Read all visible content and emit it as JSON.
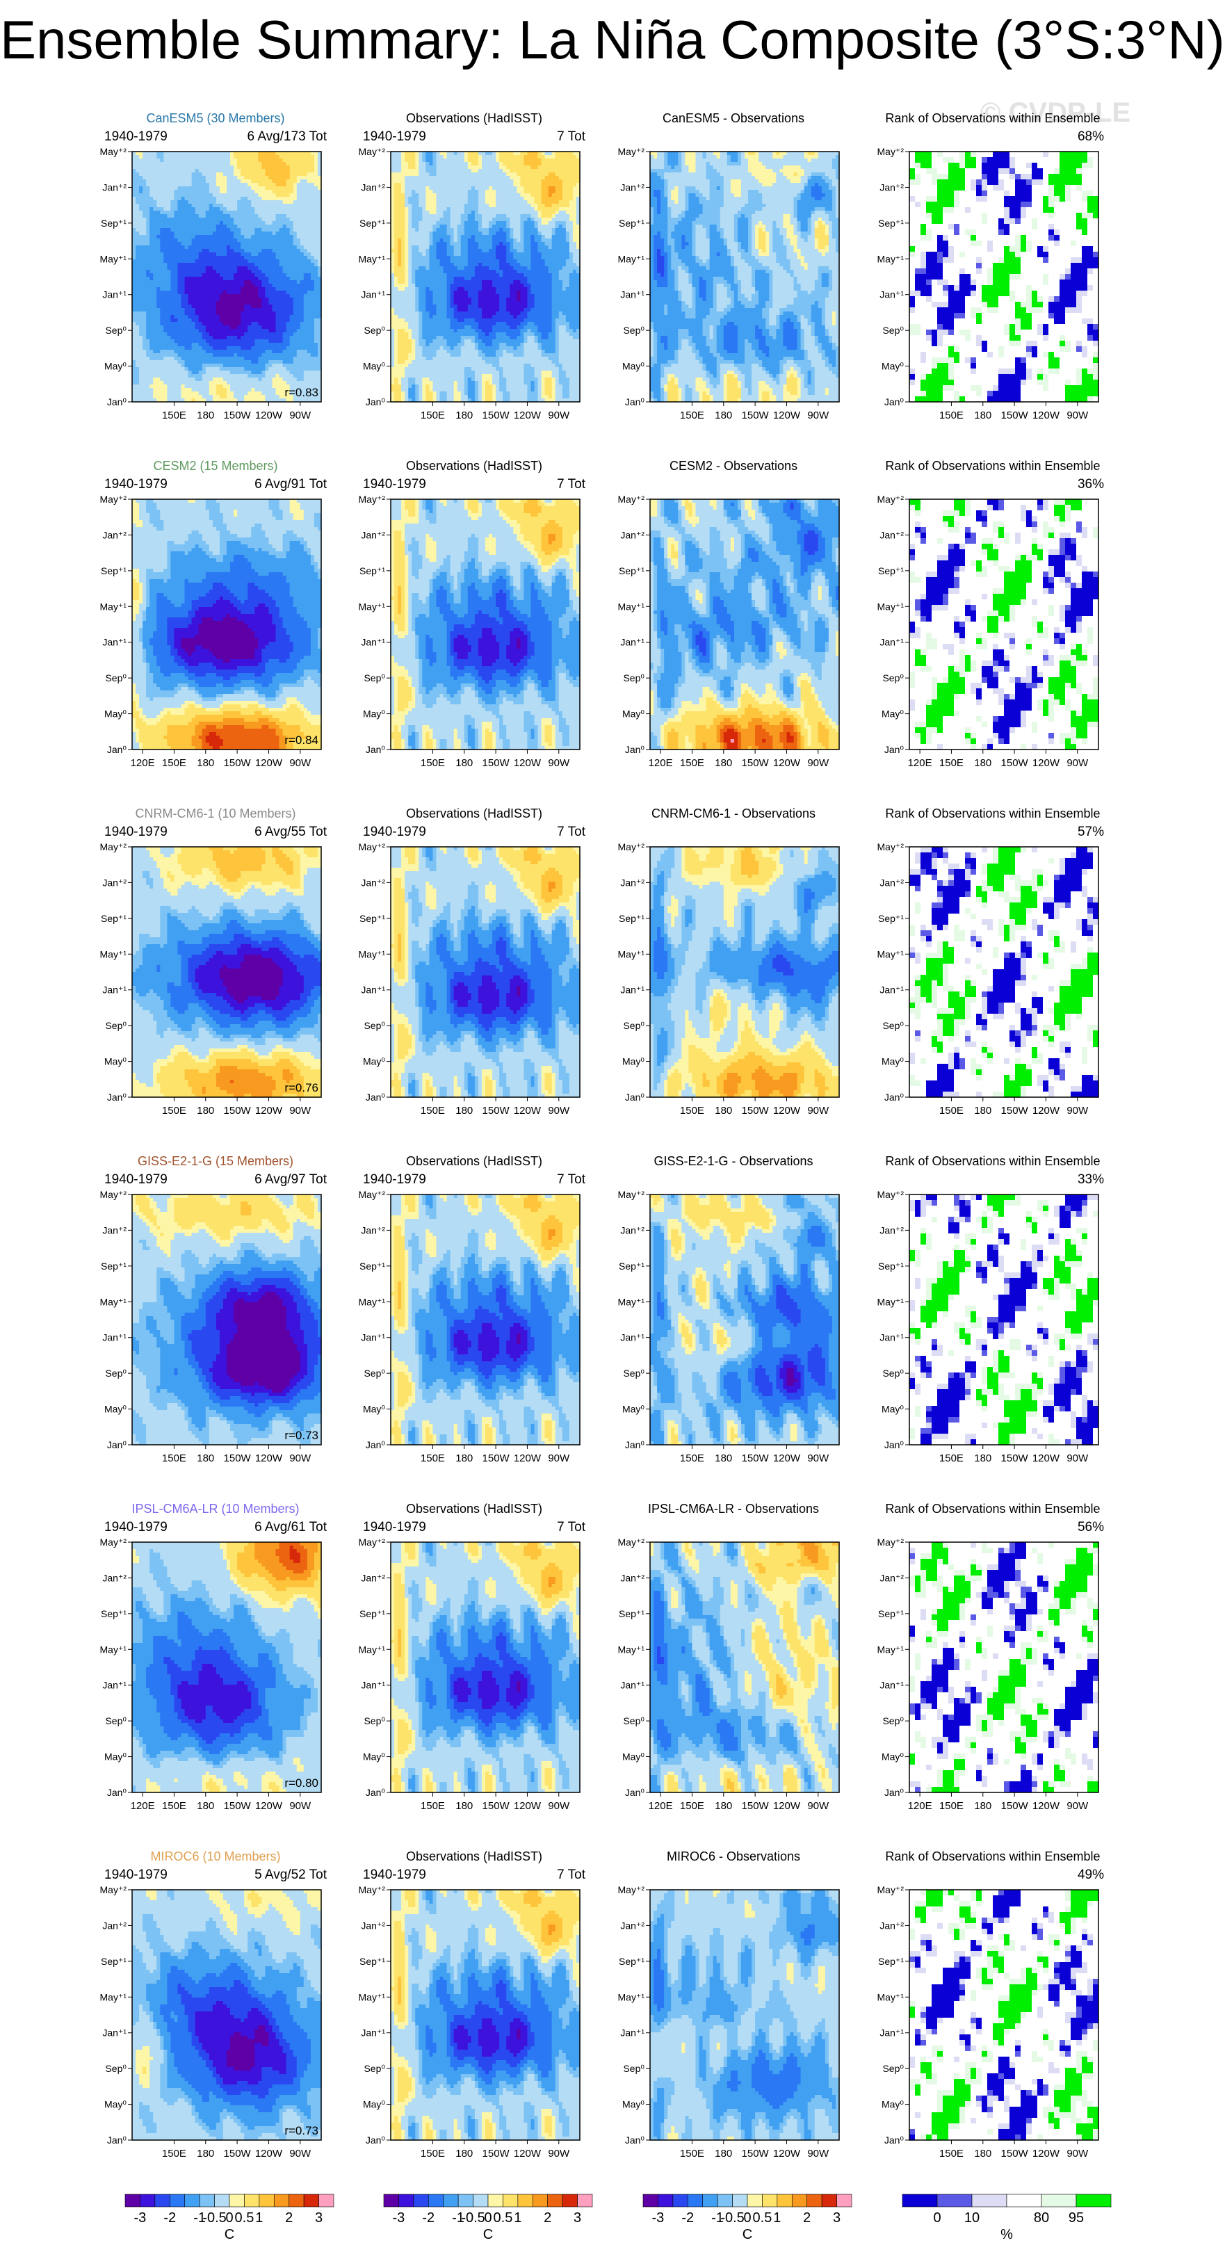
{
  "title": "Ensemble Summary: La Niña Composite (3°S:3°N)",
  "watermark": "© CVDP-LE",
  "colors": {
    "diff_levels": [
      "#5e00a6",
      "#3d12dc",
      "#2a48f0",
      "#2a78f4",
      "#41a0f2",
      "#7cc2f4",
      "#b4dcf4",
      "#fdf6a6",
      "#fde36a",
      "#fdc43c",
      "#f99a20",
      "#ed6410",
      "#d8280a",
      "#ff9fbf"
    ],
    "rank_levels": [
      "#0a00d6",
      "#5a5ae6",
      "#dcdcf4",
      "#ffffff",
      "#e4fae4",
      "#00ee00"
    ]
  },
  "chart_data": [
    {
      "type": "heatmap",
      "title": "CanESM5 (30 Members)",
      "title_color": "#2877a8",
      "subtitle_left": "1940-1979",
      "subtitle_right": "6 Avg/173 Tot",
      "correlation": "r=0.83",
      "xticks": [
        "150E",
        "180",
        "150W",
        "120W",
        "90W"
      ],
      "yticks": [
        "Jan⁰",
        "May⁰",
        "Sep⁰",
        "Jan⁺¹",
        "May⁺¹",
        "Sep⁺¹",
        "Jan⁺²",
        "May⁺²"
      ],
      "units": "C"
    },
    {
      "type": "heatmap",
      "title": "Observations (HadISST)",
      "subtitle_left": "1940-1979",
      "subtitle_right": "7 Tot",
      "xticks": [
        "150E",
        "180",
        "150W",
        "120W",
        "90W"
      ],
      "yticks": [
        "Jan⁰",
        "May⁰",
        "Sep⁰",
        "Jan⁺¹",
        "May⁺¹",
        "Sep⁺¹",
        "Jan⁺²",
        "May⁺²"
      ],
      "units": "C"
    },
    {
      "type": "heatmap",
      "title": "CanESM5 - Observations",
      "xticks": [
        "150E",
        "180",
        "150W",
        "120W",
        "90W"
      ],
      "yticks": [
        "Jan⁰",
        "May⁰",
        "Sep⁰",
        "Jan⁺¹",
        "May⁺¹",
        "Sep⁺¹",
        "Jan⁺²",
        "May⁺²"
      ],
      "units": "C"
    },
    {
      "type": "heatmap",
      "title": "Rank of Observations within Ensemble",
      "subtitle_right": "68%",
      "xticks": [
        "150E",
        "180",
        "150W",
        "120W",
        "90W"
      ],
      "yticks": [
        "Jan⁰",
        "May⁰",
        "Sep⁰",
        "Jan⁺¹",
        "May⁺¹",
        "Sep⁺¹",
        "Jan⁺²",
        "May⁺²"
      ],
      "units": "%"
    },
    {
      "type": "heatmap",
      "title": "CESM2 (15 Members)",
      "title_color": "#5f9a5f",
      "subtitle_left": "1940-1979",
      "subtitle_right": "6 Avg/91 Tot",
      "correlation": "r=0.84",
      "xticks": [
        "120E",
        "150E",
        "180",
        "150W",
        "120W",
        "90W"
      ],
      "yticks": [
        "Jan⁰",
        "May⁰",
        "Sep⁰",
        "Jan⁺¹",
        "May⁺¹",
        "Sep⁺¹",
        "Jan⁺²",
        "May⁺²"
      ],
      "units": "C"
    },
    {
      "type": "heatmap",
      "title": "Observations (HadISST)",
      "subtitle_left": "1940-1979",
      "subtitle_right": "7 Tot",
      "xticks": [
        "150E",
        "180",
        "150W",
        "120W",
        "90W"
      ],
      "yticks": [
        "Jan⁰",
        "May⁰",
        "Sep⁰",
        "Jan⁺¹",
        "May⁺¹",
        "Sep⁺¹",
        "Jan⁺²",
        "May⁺²"
      ],
      "units": "C"
    },
    {
      "type": "heatmap",
      "title": "CESM2 - Observations",
      "xticks": [
        "120E",
        "150E",
        "180",
        "150W",
        "120W",
        "90W"
      ],
      "yticks": [
        "Jan⁰",
        "May⁰",
        "Sep⁰",
        "Jan⁺¹",
        "May⁺¹",
        "Sep⁺¹",
        "Jan⁺²",
        "May⁺²"
      ],
      "units": "C"
    },
    {
      "type": "heatmap",
      "title": "Rank of Observations within Ensemble",
      "subtitle_right": "36%",
      "xticks": [
        "120E",
        "150E",
        "180",
        "150W",
        "120W",
        "90W"
      ],
      "yticks": [
        "Jan⁰",
        "May⁰",
        "Sep⁰",
        "Jan⁺¹",
        "May⁺¹",
        "Sep⁺¹",
        "Jan⁺²",
        "May⁺²"
      ],
      "units": "%"
    },
    {
      "type": "heatmap",
      "title": "CNRM-CM6-1 (10 Members)",
      "title_color": "#8a8a8a",
      "subtitle_left": "1940-1979",
      "subtitle_right": "6 Avg/55 Tot",
      "correlation": "r=0.76",
      "xticks": [
        "150E",
        "180",
        "150W",
        "120W",
        "90W"
      ],
      "yticks": [
        "Jan⁰",
        "May⁰",
        "Sep⁰",
        "Jan⁺¹",
        "May⁺¹",
        "Sep⁺¹",
        "Jan⁺²",
        "May⁺²"
      ],
      "units": "C"
    },
    {
      "type": "heatmap",
      "title": "Observations (HadISST)",
      "subtitle_left": "1940-1979",
      "subtitle_right": "7 Tot",
      "xticks": [
        "150E",
        "180",
        "150W",
        "120W",
        "90W"
      ],
      "yticks": [
        "Jan⁰",
        "May⁰",
        "Sep⁰",
        "Jan⁺¹",
        "May⁺¹",
        "Sep⁺¹",
        "Jan⁺²",
        "May⁺²"
      ],
      "units": "C"
    },
    {
      "type": "heatmap",
      "title": "CNRM-CM6-1 - Observations",
      "xticks": [
        "150E",
        "180",
        "150W",
        "120W",
        "90W"
      ],
      "yticks": [
        "Jan⁰",
        "May⁰",
        "Sep⁰",
        "Jan⁺¹",
        "May⁺¹",
        "Sep⁺¹",
        "Jan⁺²",
        "May⁺²"
      ],
      "units": "C"
    },
    {
      "type": "heatmap",
      "title": "Rank of Observations within Ensemble",
      "subtitle_right": "57%",
      "xticks": [
        "150E",
        "180",
        "150W",
        "120W",
        "90W"
      ],
      "yticks": [
        "Jan⁰",
        "May⁰",
        "Sep⁰",
        "Jan⁺¹",
        "May⁺¹",
        "Sep⁺¹",
        "Jan⁺²",
        "May⁺²"
      ],
      "units": "%"
    },
    {
      "type": "heatmap",
      "title": "GISS-E2-1-G (15 Members)",
      "title_color": "#a0522d",
      "subtitle_left": "1940-1979",
      "subtitle_right": "6 Avg/97 Tot",
      "correlation": "r=0.73",
      "xticks": [
        "150E",
        "180",
        "150W",
        "120W",
        "90W"
      ],
      "yticks": [
        "Jan⁰",
        "May⁰",
        "Sep⁰",
        "Jan⁺¹",
        "May⁺¹",
        "Sep⁺¹",
        "Jan⁺²",
        "May⁺²"
      ],
      "units": "C"
    },
    {
      "type": "heatmap",
      "title": "Observations (HadISST)",
      "subtitle_left": "1940-1979",
      "subtitle_right": "7 Tot",
      "xticks": [
        "150E",
        "180",
        "150W",
        "120W",
        "90W"
      ],
      "yticks": [
        "Jan⁰",
        "May⁰",
        "Sep⁰",
        "Jan⁺¹",
        "May⁺¹",
        "Sep⁺¹",
        "Jan⁺²",
        "May⁺²"
      ],
      "units": "C"
    },
    {
      "type": "heatmap",
      "title": "GISS-E2-1-G - Observations",
      "xticks": [
        "150E",
        "180",
        "150W",
        "120W",
        "90W"
      ],
      "yticks": [
        "Jan⁰",
        "May⁰",
        "Sep⁰",
        "Jan⁺¹",
        "May⁺¹",
        "Sep⁺¹",
        "Jan⁺²",
        "May⁺²"
      ],
      "units": "C"
    },
    {
      "type": "heatmap",
      "title": "Rank of Observations within Ensemble",
      "subtitle_right": "33%",
      "xticks": [
        "150E",
        "180",
        "150W",
        "120W",
        "90W"
      ],
      "yticks": [
        "Jan⁰",
        "May⁰",
        "Sep⁰",
        "Jan⁺¹",
        "May⁺¹",
        "Sep⁺¹",
        "Jan⁺²",
        "May⁺²"
      ],
      "units": "%"
    },
    {
      "type": "heatmap",
      "title": "IPSL-CM6A-LR (10 Members)",
      "title_color": "#7b68ee",
      "subtitle_left": "1940-1979",
      "subtitle_right": "6 Avg/61 Tot",
      "correlation": "r=0.80",
      "xticks": [
        "120E",
        "150E",
        "180",
        "150W",
        "120W",
        "90W"
      ],
      "yticks": [
        "Jan⁰",
        "May⁰",
        "Sep⁰",
        "Jan⁺¹",
        "May⁺¹",
        "Sep⁺¹",
        "Jan⁺²",
        "May⁺²"
      ],
      "units": "C"
    },
    {
      "type": "heatmap",
      "title": "Observations (HadISST)",
      "subtitle_left": "1940-1979",
      "subtitle_right": "7 Tot",
      "xticks": [
        "150E",
        "180",
        "150W",
        "120W",
        "90W"
      ],
      "yticks": [
        "Jan⁰",
        "May⁰",
        "Sep⁰",
        "Jan⁺¹",
        "May⁺¹",
        "Sep⁺¹",
        "Jan⁺²",
        "May⁺²"
      ],
      "units": "C"
    },
    {
      "type": "heatmap",
      "title": "IPSL-CM6A-LR - Observations",
      "xticks": [
        "120E",
        "150E",
        "180",
        "150W",
        "120W",
        "90W"
      ],
      "yticks": [
        "Jan⁰",
        "May⁰",
        "Sep⁰",
        "Jan⁺¹",
        "May⁺¹",
        "Sep⁺¹",
        "Jan⁺²",
        "May⁺²"
      ],
      "units": "C"
    },
    {
      "type": "heatmap",
      "title": "Rank of Observations within Ensemble",
      "subtitle_right": "56%",
      "xticks": [
        "120E",
        "150E",
        "180",
        "150W",
        "120W",
        "90W"
      ],
      "yticks": [
        "Jan⁰",
        "May⁰",
        "Sep⁰",
        "Jan⁺¹",
        "May⁺¹",
        "Sep⁺¹",
        "Jan⁺²",
        "May⁺²"
      ],
      "units": "%"
    },
    {
      "type": "heatmap",
      "title": "MIROC6 (10 Members)",
      "title_color": "#e0a050",
      "subtitle_left": "1940-1979",
      "subtitle_right": "5 Avg/52 Tot",
      "correlation": "r=0.73",
      "xticks": [
        "150E",
        "180",
        "150W",
        "120W",
        "90W"
      ],
      "yticks": [
        "Jan⁰",
        "May⁰",
        "Sep⁰",
        "Jan⁺¹",
        "May⁺¹",
        "Sep⁺¹",
        "Jan⁺²",
        "May⁺²"
      ],
      "units": "C"
    },
    {
      "type": "heatmap",
      "title": "Observations (HadISST)",
      "subtitle_left": "1940-1979",
      "subtitle_right": "7 Tot",
      "xticks": [
        "150E",
        "180",
        "150W",
        "120W",
        "90W"
      ],
      "yticks": [
        "Jan⁰",
        "May⁰",
        "Sep⁰",
        "Jan⁺¹",
        "May⁺¹",
        "Sep⁺¹",
        "Jan⁺²",
        "May⁺²"
      ],
      "units": "C"
    },
    {
      "type": "heatmap",
      "title": "MIROC6 - Observations",
      "xticks": [
        "150E",
        "180",
        "150W",
        "120W",
        "90W"
      ],
      "yticks": [
        "Jan⁰",
        "May⁰",
        "Sep⁰",
        "Jan⁺¹",
        "May⁺¹",
        "Sep⁺¹",
        "Jan⁺²",
        "May⁺²"
      ],
      "units": "C"
    },
    {
      "type": "heatmap",
      "title": "Rank of Observations within Ensemble",
      "subtitle_right": "49%",
      "xticks": [
        "150E",
        "180",
        "150W",
        "120W",
        "90W"
      ],
      "yticks": [
        "Jan⁰",
        "May⁰",
        "Sep⁰",
        "Jan⁺¹",
        "May⁺¹",
        "Sep⁺¹",
        "Jan⁺²",
        "May⁺²"
      ],
      "units": "%"
    }
  ],
  "colorbars": [
    {
      "labels": [
        "-3",
        "-2",
        "-1",
        "-0.5",
        "0",
        "0.5",
        "1",
        "2",
        "3"
      ],
      "unit": "C",
      "kind": "diff"
    },
    {
      "labels": [
        "-3",
        "-2",
        "-1",
        "-0.5",
        "0",
        "0.5",
        "1",
        "2",
        "3"
      ],
      "unit": "C",
      "kind": "diff"
    },
    {
      "labels": [
        "-3",
        "-2",
        "-1",
        "-0.5",
        "0",
        "0.5",
        "1",
        "2",
        "3"
      ],
      "unit": "C",
      "kind": "diff"
    },
    {
      "labels": [
        "0",
        "10",
        "80",
        "95"
      ],
      "unit": "%",
      "kind": "rank"
    }
  ]
}
